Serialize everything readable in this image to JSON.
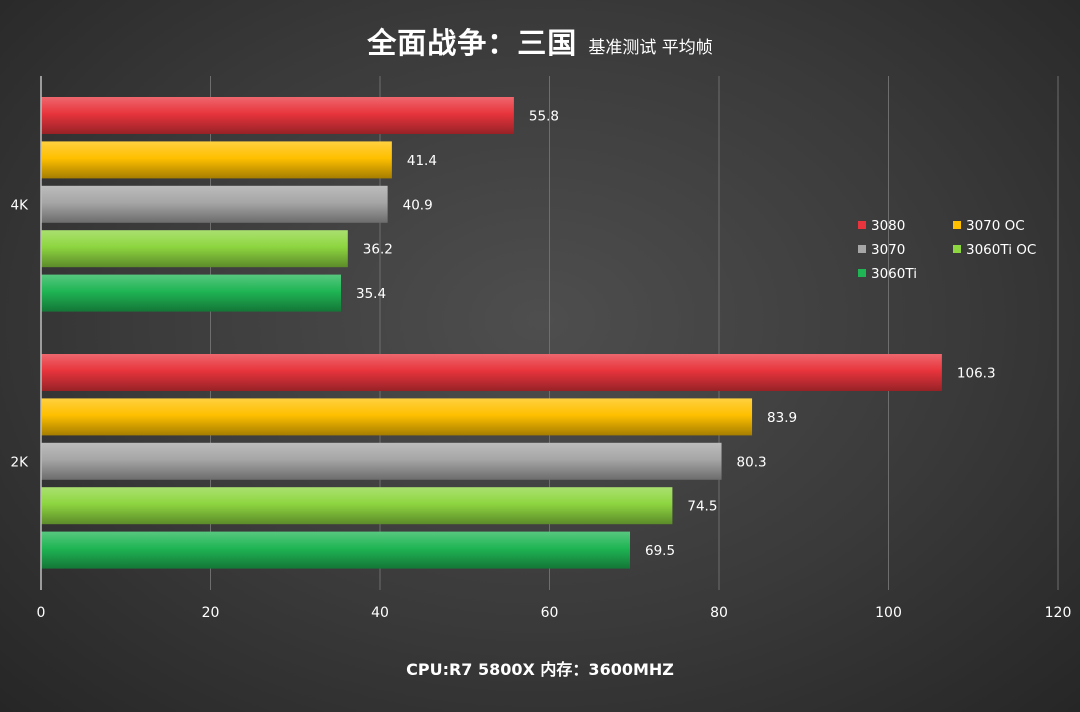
{
  "chart_data": {
    "type": "bar",
    "orientation": "horizontal",
    "title": "全面战争：三国",
    "subtitle": "基准测试 平均帧",
    "xlabel": "CPU:R7 5800X 内存：3600MHZ",
    "ylabel": "",
    "categories": [
      "4K",
      "2K"
    ],
    "series": [
      {
        "name": "3080",
        "color": "#e8343c",
        "values": [
          55.8,
          106.3
        ]
      },
      {
        "name": "3070 OC",
        "color": "#ffc000",
        "values": [
          41.4,
          83.9
        ]
      },
      {
        "name": "3070",
        "color": "#a6a6a6",
        "values": [
          40.9,
          80.3
        ]
      },
      {
        "name": "3060Ti OC",
        "color": "#8ed640",
        "values": [
          36.2,
          74.5
        ]
      },
      {
        "name": "3060Ti",
        "color": "#1fb554",
        "values": [
          35.4,
          69.5
        ]
      }
    ],
    "xlim": [
      0,
      120
    ],
    "xticks": [
      0,
      20,
      40,
      60,
      80,
      100,
      120
    ],
    "grid": true,
    "legend_position": "right",
    "data_labels": true
  }
}
